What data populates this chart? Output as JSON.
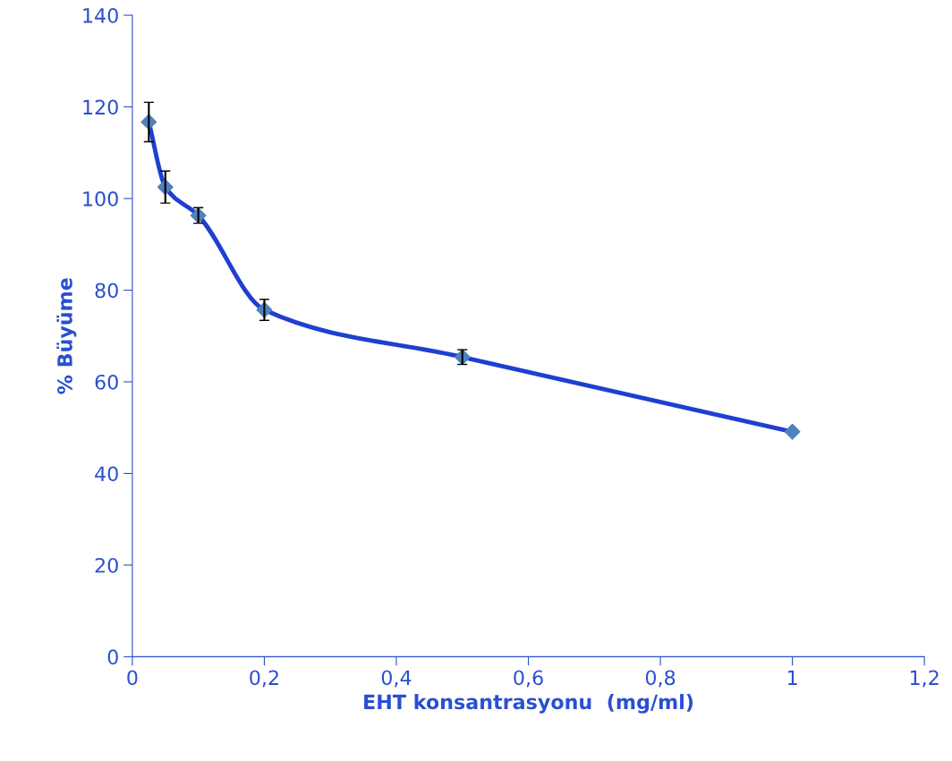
{
  "chart_data": {
    "type": "line",
    "xlabel": "EHT konsantrasyonu  (mg/ml)",
    "ylabel": "% Büyüme",
    "x": [
      0.025,
      0.05,
      0.1,
      0.2,
      0.5,
      1
    ],
    "series": [
      {
        "color": "#1f3fd0",
        "values": [
          116.7,
          102.5,
          96.3,
          75.7,
          65.4,
          49.1
        ],
        "errors": [
          4.3,
          3.5,
          1.7,
          2.3,
          1.6,
          null
        ]
      }
    ],
    "marker": "diamond",
    "grid": false,
    "legend": false,
    "xlim": [
      0,
      1.2
    ],
    "xticks": [
      0,
      {
        "value": 0.2,
        "label": "0,2"
      },
      {
        "value": 0.4,
        "label": "0,4"
      },
      {
        "value": 0.6,
        "label": "0,6"
      },
      {
        "value": 0.8,
        "label": "0,8"
      },
      1,
      {
        "value": 1.2,
        "label": "1,2"
      }
    ],
    "ylim": [
      0,
      140
    ],
    "yticks": [
      0,
      20,
      40,
      60,
      80,
      100,
      120,
      140
    ]
  }
}
